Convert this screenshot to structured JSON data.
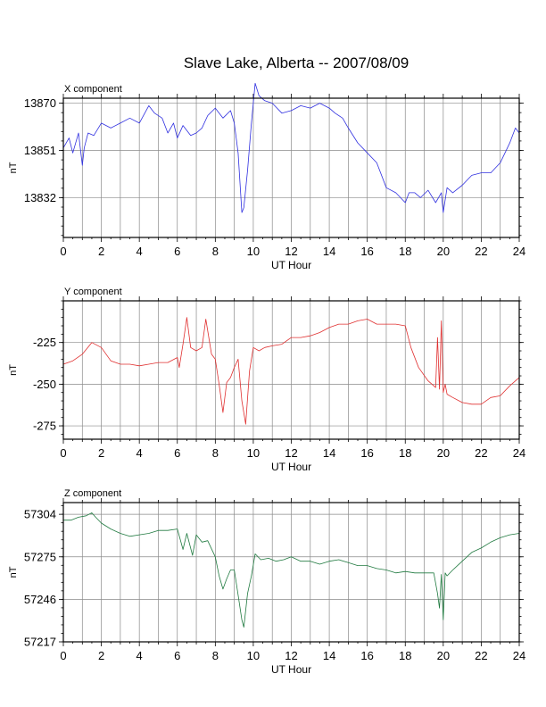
{
  "page": {
    "title": "Slave Lake, Alberta -- 2007/08/09"
  },
  "chart_data": [
    {
      "type": "line",
      "panel_title": "X component",
      "xlabel": "UT Hour",
      "ylabel": "nT",
      "xlim": [
        0,
        24
      ],
      "ylim": [
        13816,
        13872
      ],
      "x_ticks": [
        "0",
        "2",
        "4",
        "6",
        "8",
        "10",
        "12",
        "14",
        "16",
        "18",
        "20",
        "22",
        "24"
      ],
      "y_ticks": [
        13870,
        13851,
        13832
      ],
      "y_tick_labels": [
        "13870",
        "13851",
        "13832"
      ],
      "grid": true,
      "color": "#3030e0",
      "series": [
        {
          "x": [
            0,
            0.3,
            0.5,
            0.8,
            1.0,
            1.1,
            1.3,
            1.6,
            2.0,
            2.5,
            3.0,
            3.5,
            4.0,
            4.5,
            4.8,
            5.2,
            5.5,
            5.8,
            6.0,
            6.3,
            6.7,
            7.0,
            7.3,
            7.6,
            8.0,
            8.4,
            8.8,
            9.0,
            9.2,
            9.4,
            9.5,
            9.7,
            9.9,
            10.1,
            10.3,
            10.6,
            11.0,
            11.5,
            12.0,
            12.5,
            13.0,
            13.5,
            14.0,
            14.3,
            14.7,
            15.0,
            15.5,
            16.0,
            16.5,
            17.0,
            17.5,
            18.0,
            18.2,
            18.5,
            18.8,
            19.2,
            19.6,
            19.9,
            20.0,
            20.2,
            20.5,
            21.0,
            21.5,
            22.0,
            22.5,
            23.0,
            23.5,
            23.8,
            24.0
          ],
          "y": [
            13852,
            13856,
            13850,
            13858,
            13845,
            13852,
            13858,
            13857,
            13862,
            13860,
            13862,
            13864,
            13862,
            13869,
            13866,
            13864,
            13858,
            13862,
            13856,
            13861,
            13857,
            13858,
            13860,
            13865,
            13868,
            13864,
            13867,
            13862,
            13850,
            13826,
            13828,
            13843,
            13862,
            13878,
            13873,
            13871,
            13870,
            13866,
            13867,
            13869,
            13868,
            13870,
            13868,
            13866,
            13864,
            13860,
            13854,
            13850,
            13846,
            13836,
            13834,
            13830,
            13834,
            13834,
            13832,
            13835,
            13830,
            13834,
            13826,
            13836,
            13834,
            13837,
            13841,
            13842,
            13842,
            13846,
            13854,
            13860,
            13858
          ]
        }
      ]
    },
    {
      "type": "line",
      "panel_title": "Y component",
      "xlabel": "UT Hour",
      "ylabel": "nT",
      "xlim": [
        0,
        24
      ],
      "ylim": [
        -283,
        -200
      ],
      "x_ticks": [
        "0",
        "2",
        "4",
        "6",
        "8",
        "10",
        "12",
        "14",
        "16",
        "18",
        "20",
        "22",
        "24"
      ],
      "y_ticks": [
        -225,
        -250,
        -275
      ],
      "y_tick_labels": [
        "-225",
        "-250",
        "-275"
      ],
      "grid": true,
      "color": "#e03030",
      "series": [
        {
          "x": [
            0,
            0.5,
            1.0,
            1.5,
            2.0,
            2.5,
            3.0,
            3.5,
            4.0,
            4.5,
            5.0,
            5.5,
            6.0,
            6.1,
            6.3,
            6.5,
            6.7,
            7.0,
            7.3,
            7.5,
            7.8,
            8.0,
            8.2,
            8.4,
            8.6,
            8.8,
            9.0,
            9.2,
            9.4,
            9.6,
            9.8,
            10.0,
            10.3,
            10.6,
            11.0,
            11.5,
            12.0,
            12.5,
            13.0,
            13.5,
            14.0,
            14.5,
            15.0,
            15.5,
            16.0,
            16.5,
            17.0,
            17.5,
            18.0,
            18.3,
            18.7,
            19.2,
            19.6,
            19.7,
            19.8,
            19.9,
            20.0,
            20.1,
            20.2,
            20.5,
            21.0,
            21.5,
            22.0,
            22.5,
            23.0,
            23.5,
            24.0
          ],
          "y": [
            -238,
            -236,
            -232,
            -225,
            -228,
            -236,
            -238,
            -238,
            -239,
            -238,
            -237,
            -237,
            -234,
            -240,
            -226,
            -210,
            -228,
            -230,
            -228,
            -211,
            -232,
            -235,
            -250,
            -267,
            -249,
            -246,
            -240,
            -235,
            -260,
            -274,
            -242,
            -228,
            -230,
            -228,
            -227,
            -226,
            -222,
            -222,
            -221,
            -219,
            -216,
            -214,
            -214,
            -212,
            -211,
            -214,
            -214,
            -214,
            -215,
            -228,
            -240,
            -248,
            -252,
            -222,
            -253,
            -212,
            -255,
            -250,
            -256,
            -258,
            -261,
            -262,
            -262,
            -258,
            -257,
            -251,
            -246
          ]
        }
      ]
    },
    {
      "type": "line",
      "panel_title": "Z component",
      "xlabel": "UT Hour",
      "ylabel": "nT",
      "xlim": [
        0,
        24
      ],
      "ylim": [
        57217,
        57312
      ],
      "x_ticks": [
        "0",
        "2",
        "4",
        "6",
        "8",
        "10",
        "12",
        "14",
        "16",
        "18",
        "20",
        "22",
        "24"
      ],
      "y_ticks": [
        57304,
        57275,
        57246,
        57217
      ],
      "y_tick_labels": [
        "57304",
        "57275",
        "57246",
        "57217"
      ],
      "grid": true,
      "color": "#207a40",
      "series": [
        {
          "x": [
            0,
            0.4,
            0.8,
            1.2,
            1.5,
            1.7,
            2.0,
            2.5,
            3.0,
            3.5,
            4.0,
            4.5,
            5.0,
            5.5,
            6.0,
            6.3,
            6.5,
            6.8,
            7.0,
            7.3,
            7.6,
            8.0,
            8.2,
            8.4,
            8.6,
            8.8,
            9.0,
            9.2,
            9.4,
            9.5,
            9.7,
            9.9,
            10.1,
            10.4,
            10.8,
            11.2,
            11.6,
            12.0,
            12.5,
            13.0,
            13.5,
            14.0,
            14.5,
            15.0,
            15.5,
            16.0,
            16.5,
            17.0,
            17.5,
            18.0,
            18.5,
            19.0,
            19.5,
            19.7,
            19.8,
            19.9,
            20.0,
            20.1,
            20.2,
            20.5,
            21.0,
            21.5,
            22.0,
            22.5,
            23.0,
            23.5,
            24.0
          ],
          "y": [
            57300,
            57300,
            57302,
            57303,
            57305,
            57302,
            57298,
            57294,
            57291,
            57289,
            57290,
            57291,
            57293,
            57293,
            57294,
            57280,
            57291,
            57276,
            57290,
            57285,
            57286,
            57275,
            57262,
            57253,
            57260,
            57266,
            57266,
            57249,
            57232,
            57227,
            57250,
            57262,
            57277,
            57273,
            57274,
            57272,
            57273,
            57275,
            57272,
            57272,
            57270,
            57272,
            57273,
            57271,
            57269,
            57269,
            57267,
            57266,
            57264,
            57265,
            57264,
            57264,
            57264,
            57250,
            57240,
            57263,
            57232,
            57264,
            57262,
            57266,
            57272,
            57278,
            57281,
            57285,
            57288,
            57290,
            57291
          ]
        }
      ]
    }
  ]
}
